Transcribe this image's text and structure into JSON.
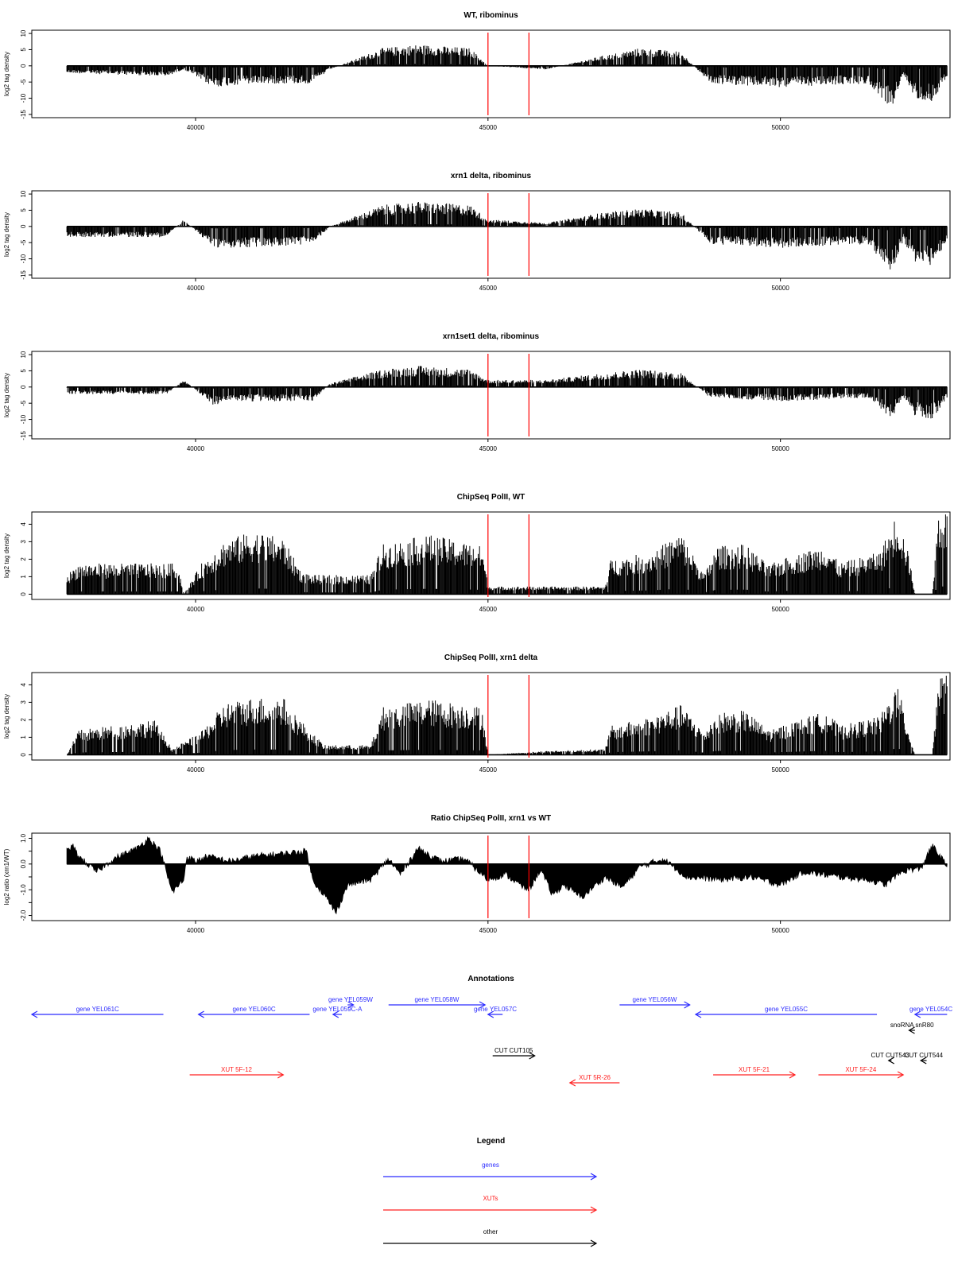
{
  "chart_data": [
    {
      "type": "bar",
      "title": "WT, ribominus",
      "ylabel": "log2 tag density",
      "ylim": [
        -16,
        11
      ],
      "xlim": [
        37200,
        52900
      ],
      "yticks": [
        10,
        5,
        0,
        -5,
        -10,
        -15
      ],
      "xticks": [
        40000,
        45000,
        50000
      ],
      "markers": [
        45000,
        45700
      ],
      "profile": {
        "x": [
          37800,
          39500,
          39800,
          40300,
          41000,
          42000,
          42300,
          43200,
          43800,
          44700,
          45000,
          46000,
          47000,
          47600,
          48300,
          48800,
          50000,
          51500,
          51900,
          52100,
          52300,
          52600,
          52850
        ],
        "y": [
          -2,
          -3,
          -1,
          -6,
          -5,
          -5,
          -1,
          5,
          6,
          5,
          0,
          -1,
          3,
          5,
          4,
          -5,
          -6,
          -5,
          -12,
          -3,
          -9,
          -10,
          -3
        ]
      }
    },
    {
      "type": "bar",
      "title": "xrn1 delta, ribominus",
      "ylabel": "log2 tag density",
      "ylim": [
        -16,
        11
      ],
      "xlim": [
        37200,
        52900
      ],
      "yticks": [
        10,
        5,
        0,
        -5,
        -10,
        -15
      ],
      "xticks": [
        40000,
        45000,
        50000
      ],
      "markers": [
        45000,
        45700
      ],
      "profile": {
        "x": [
          37800,
          39500,
          39800,
          40300,
          41000,
          42000,
          42300,
          43200,
          43800,
          44700,
          45000,
          46000,
          47000,
          47600,
          48300,
          48800,
          50000,
          51500,
          51900,
          52100,
          52300,
          52600,
          52850
        ],
        "y": [
          -3,
          -3,
          2,
          -6,
          -6,
          -5,
          0,
          6,
          7,
          6,
          2,
          1,
          4,
          5,
          4,
          -5,
          -6,
          -5,
          -13,
          -4,
          -10,
          -11,
          -4
        ]
      }
    },
    {
      "type": "bar",
      "title": "xrn1set1 delta, ribominus",
      "ylabel": "log2 tag density",
      "ylim": [
        -16,
        11
      ],
      "xlim": [
        37200,
        52900
      ],
      "yticks": [
        10,
        5,
        0,
        -5,
        -10,
        -15
      ],
      "xticks": [
        40000,
        45000,
        50000
      ],
      "markers": [
        45000,
        45700
      ],
      "profile": {
        "x": [
          37800,
          39500,
          39800,
          40300,
          41000,
          42000,
          42300,
          43200,
          43800,
          44700,
          45000,
          46000,
          47000,
          47600,
          48300,
          48800,
          50000,
          51500,
          51900,
          52100,
          52300,
          52600,
          52850
        ],
        "y": [
          -2,
          -2,
          2,
          -5,
          -4,
          -4,
          1,
          5,
          6,
          5,
          2,
          2,
          4,
          5,
          4,
          -3,
          -4,
          -3,
          -9,
          -3,
          -8,
          -9,
          -3
        ]
      }
    },
    {
      "type": "bar",
      "title": "ChipSeq PolII, WT",
      "ylabel": "log2 tag density",
      "ylim": [
        -0.3,
        4.7
      ],
      "xlim": [
        37200,
        52900
      ],
      "yticks": [
        4,
        3,
        2,
        1,
        0
      ],
      "xticks": [
        40000,
        45000,
        50000
      ],
      "markers": [
        45000,
        45700
      ],
      "profile": {
        "x": [
          37800,
          38000,
          39700,
          39800,
          40100,
          40500,
          41000,
          41500,
          41800,
          42000,
          43000,
          43200,
          44000,
          44900,
          45000,
          46000,
          47000,
          47100,
          47800,
          48300,
          48700,
          48900,
          49400,
          49800,
          50000,
          50800,
          51000,
          51700,
          52000,
          52200,
          52300,
          52600,
          52700,
          52850
        ],
        "y": [
          1,
          1.6,
          1.6,
          0,
          1.6,
          2.8,
          3.3,
          2.9,
          1.2,
          1.0,
          1.0,
          2.6,
          3.1,
          2.5,
          0.4,
          0.4,
          0.4,
          1.8,
          2.2,
          3.2,
          1.0,
          2.5,
          2.6,
          1.5,
          1.8,
          2.6,
          1.6,
          2.2,
          4.3,
          2.0,
          0,
          0,
          4.4,
          4.4
        ]
      }
    },
    {
      "type": "bar",
      "title": "ChipSeq PolII, xrn1 delta",
      "ylabel": "log2 tag density",
      "ylim": [
        -0.3,
        4.7
      ],
      "xlim": [
        37200,
        52900
      ],
      "yticks": [
        4,
        3,
        2,
        1,
        0
      ],
      "xticks": [
        40000,
        45000,
        50000
      ],
      "markers": [
        45000,
        45700
      ],
      "profile": {
        "x": [
          37800,
          38000,
          39300,
          39600,
          40100,
          40500,
          41000,
          41500,
          41800,
          42200,
          43000,
          43200,
          44000,
          44900,
          45000,
          46000,
          47000,
          47100,
          47800,
          48300,
          48700,
          48900,
          49400,
          49800,
          50000,
          50800,
          51000,
          51700,
          52000,
          52200,
          52300,
          52600,
          52700,
          52850
        ],
        "y": [
          0,
          1.3,
          1.8,
          0.3,
          1.2,
          2.7,
          3.0,
          3.0,
          1.8,
          0.5,
          0.5,
          2.5,
          2.9,
          2.5,
          0,
          0.2,
          0.3,
          1.5,
          2.0,
          2.6,
          1.2,
          2.2,
          2.3,
          1.3,
          1.5,
          2.3,
          1.5,
          2.0,
          3.7,
          1.2,
          0,
          0,
          4.2,
          4.2
        ]
      }
    },
    {
      "type": "area",
      "title": "Ratio ChipSeq PolII, xrn1 vs WT",
      "ylabel": "log2 ratio (xrn1/WT)",
      "ylim": [
        -2.2,
        1.2
      ],
      "xlim": [
        37200,
        52900
      ],
      "yticks": [
        1.0,
        0.5,
        0.0,
        -0.5,
        -1.0,
        -1.5,
        -2.0
      ],
      "ytick_labels": [
        "1.0",
        "0.0",
        "-1.0",
        "-2.0"
      ],
      "xticks": [
        40000,
        45000,
        50000
      ],
      "markers": [
        45000,
        45700
      ],
      "series": [
        {
          "x": [
            37800,
            37900,
            38000,
            38300,
            38600,
            39000,
            39200,
            39400,
            39600,
            39800,
            39850,
            40000,
            40200,
            40600,
            41000,
            41500,
            41900,
            42000,
            42200,
            42400,
            42600,
            43000,
            43300,
            43500,
            43800,
            44200,
            44600,
            45000,
            45300,
            45600,
            45700,
            45900,
            46100,
            46300,
            46600,
            47000,
            47300,
            47600,
            48000,
            48400,
            49000,
            49500,
            50000,
            50400,
            51000,
            51500,
            51800,
            52000,
            52200,
            52400,
            52500,
            52600,
            52700,
            52850
          ],
          "y": [
            0.5,
            0.7,
            0.3,
            -0.3,
            0.2,
            0.6,
            1.0,
            0.5,
            -1.1,
            -0.6,
            0.3,
            0.1,
            0.3,
            0.1,
            0.3,
            0.4,
            0.5,
            -0.6,
            -1.2,
            -1.9,
            -0.8,
            -0.6,
            0.2,
            -0.4,
            0.6,
            0.1,
            0.2,
            -0.6,
            -0.4,
            -0.9,
            -1.0,
            -0.2,
            -1.2,
            -0.8,
            -1.3,
            -0.5,
            -0.9,
            -0.1,
            0.2,
            -0.5,
            -0.6,
            -0.5,
            -0.8,
            -0.3,
            -0.5,
            -0.6,
            -0.8,
            -0.4,
            -0.2,
            -0.2,
            0.3,
            0.7,
            0.4,
            -0.1
          ]
        }
      ]
    }
  ],
  "annotations": {
    "title": "Annotations",
    "features": [
      {
        "label": "gene YEL061C",
        "class": "gene",
        "x1": 37200,
        "x2": 39450,
        "dir": "left",
        "row": 1
      },
      {
        "label": "gene YEL060C",
        "class": "gene",
        "x1": 40050,
        "x2": 41950,
        "dir": "left",
        "row": 1
      },
      {
        "label": "gene YEL059C-A",
        "class": "gene",
        "x1": 42350,
        "x2": 42500,
        "dir": "left",
        "row": 1
      },
      {
        "label": "gene YEL059W",
        "class": "gene",
        "x1": 42600,
        "x2": 42700,
        "dir": "right",
        "row": 0
      },
      {
        "label": "gene YEL058W",
        "class": "gene",
        "x1": 43300,
        "x2": 44950,
        "dir": "right",
        "row": 0
      },
      {
        "label": "gene YEL057C",
        "class": "gene",
        "x1": 45000,
        "x2": 45250,
        "dir": "left",
        "row": 1
      },
      {
        "label": "gene YEL056W",
        "class": "gene",
        "x1": 47250,
        "x2": 48450,
        "dir": "right",
        "row": 0
      },
      {
        "label": "gene YEL055C",
        "class": "gene",
        "x1": 48550,
        "x2": 51650,
        "dir": "left",
        "row": 1
      },
      {
        "label": "gene YEL054C",
        "class": "gene",
        "x1": 52300,
        "x2": 52850,
        "dir": "left",
        "row": 1
      },
      {
        "label": "snoRNA snR80",
        "class": "other",
        "x1": 52200,
        "x2": 52300,
        "dir": "left",
        "row": 2
      },
      {
        "label": "CUT CUT105",
        "class": "other",
        "x1": 45080,
        "x2": 45800,
        "dir": "right",
        "row": 3
      },
      {
        "label": "CUT CUT543",
        "class": "other",
        "x1": 51850,
        "x2": 51900,
        "dir": "left",
        "row": 4
      },
      {
        "label": "CUT CUT544",
        "class": "other",
        "x1": 52400,
        "x2": 52500,
        "dir": "left",
        "row": 4
      },
      {
        "label": "XUT 5F-12",
        "class": "xut",
        "x1": 39900,
        "x2": 41500,
        "dir": "right",
        "row": 5
      },
      {
        "label": "XUT 5R-26",
        "class": "xut",
        "x1": 46400,
        "x2": 47250,
        "dir": "left",
        "row": 6
      },
      {
        "label": "XUT 5F-21",
        "class": "xut",
        "x1": 48850,
        "x2": 50250,
        "dir": "right",
        "row": 5
      },
      {
        "label": "XUT 5F-24",
        "class": "xut",
        "x1": 50650,
        "x2": 52100,
        "dir": "right",
        "row": 5
      }
    ]
  },
  "legend": {
    "title": "Legend",
    "items": [
      {
        "label": "genes",
        "class": "gene"
      },
      {
        "label": "XUTs",
        "class": "xut"
      },
      {
        "label": "other",
        "class": "other"
      }
    ]
  },
  "colors": {
    "gene": "#2b2bff",
    "xut": "#ff2020",
    "other": "#000000",
    "marker": "#ff0000",
    "data": "#000000"
  }
}
